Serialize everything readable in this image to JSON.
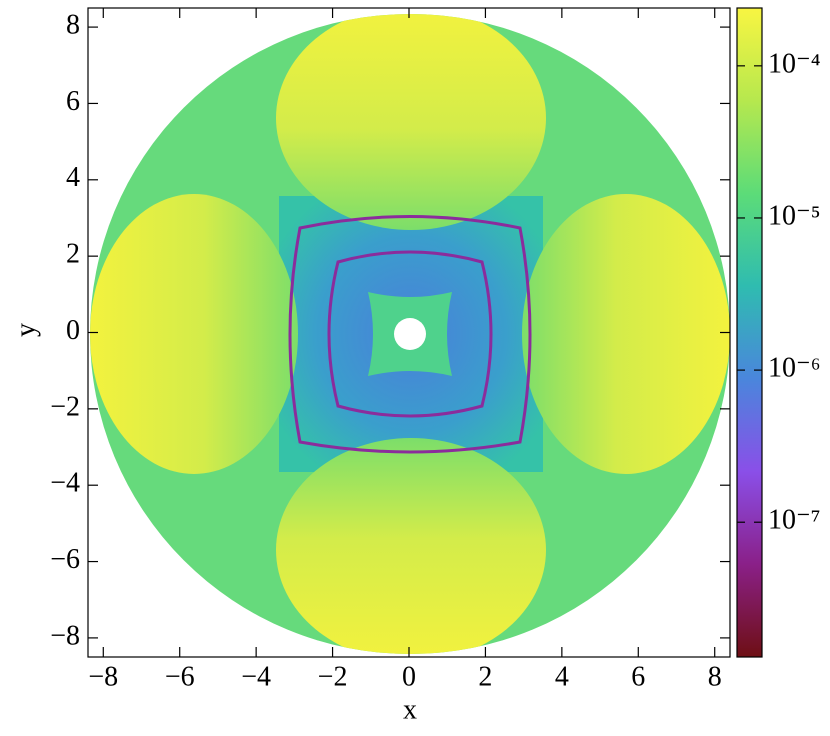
{
  "chart_data": {
    "type": "heatmap",
    "xlabel": "x",
    "ylabel": "y",
    "xlim": [
      -8.4,
      8.4
    ],
    "ylim": [
      -8.5,
      8.5
    ],
    "xticks": [
      {
        "value": -8,
        "label": "−8"
      },
      {
        "value": -6,
        "label": "−6"
      },
      {
        "value": -4,
        "label": "−4"
      },
      {
        "value": -2,
        "label": "−2"
      },
      0,
      2,
      4,
      6,
      8
    ],
    "yticks": [
      {
        "value": -8,
        "label": "−8"
      },
      {
        "value": -6,
        "label": "−6"
      },
      {
        "value": -4,
        "label": "−4"
      },
      {
        "value": -2,
        "label": "−2"
      },
      0,
      2,
      4,
      6,
      8
    ],
    "colorbar": {
      "scale": "log",
      "lim": [
        1.3e-08,
        0.00024
      ],
      "ticks": [
        {
          "value": 1e-07,
          "label": "10⁻⁷"
        },
        {
          "value": 1e-06,
          "label": "10⁻⁶"
        },
        {
          "value": 1e-05,
          "label": "10⁻⁵"
        },
        {
          "value": 0.0001,
          "label": "10⁻⁴"
        }
      ],
      "colormap": [
        "#6e0f14",
        "#8a2088",
        "#8a4fe8",
        "#4a86dc",
        "#2fbcb0",
        "#5cdc78",
        "#b6e84e",
        "#f8f542"
      ]
    }
  }
}
